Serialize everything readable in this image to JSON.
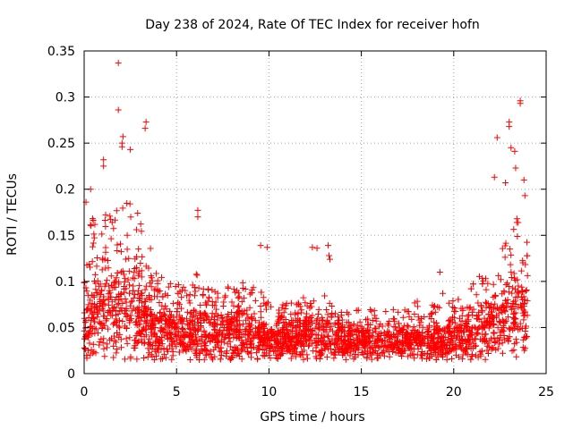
{
  "chart_data": {
    "type": "scatter",
    "title": "Day 238 of 2024, Rate Of TEC Index for receiver hofn",
    "xlabel": "GPS time / hours",
    "ylabel": "ROTI / TECUs",
    "xlim": [
      0,
      25
    ],
    "ylim": [
      0,
      0.35
    ],
    "x_ticks": [
      "0",
      "5",
      "10",
      "15",
      "20",
      "25"
    ],
    "y_ticks": [
      "0",
      "0.05",
      "0.1",
      "0.15",
      "0.2",
      "0.25",
      "0.3",
      "0.35"
    ],
    "x_tick_values": [
      0,
      5,
      10,
      15,
      20,
      25
    ],
    "y_tick_values": [
      0,
      0.05,
      0.1,
      0.15,
      0.2,
      0.25,
      0.3,
      0.35
    ],
    "grid": true,
    "marker": "+",
    "color": "#ff0000",
    "series": [
      {
        "envelope": {
          "x_hours": [
            0,
            0.5,
            1,
            1.5,
            2,
            2.5,
            3,
            3.5,
            4,
            4.5,
            5,
            5.5,
            6,
            6.5,
            7,
            7.5,
            8,
            8.5,
            9,
            9.5,
            10,
            10.5,
            11,
            11.5,
            12,
            12.5,
            13,
            13.5,
            14,
            14.5,
            15,
            15.5,
            16,
            16.5,
            17,
            17.5,
            18,
            18.5,
            19,
            19.5,
            20,
            20.5,
            21,
            21.5,
            22,
            22.5,
            23,
            23.5,
            24
          ],
          "low": [
            0.01,
            0.015,
            0.015,
            0.015,
            0.015,
            0.015,
            0.015,
            0.015,
            0.015,
            0.015,
            0.015,
            0.015,
            0.015,
            0.015,
            0.015,
            0.015,
            0.015,
            0.015,
            0.015,
            0.015,
            0.015,
            0.015,
            0.015,
            0.015,
            0.015,
            0.015,
            0.015,
            0.015,
            0.015,
            0.015,
            0.015,
            0.015,
            0.015,
            0.015,
            0.015,
            0.015,
            0.015,
            0.015,
            0.015,
            0.015,
            0.015,
            0.015,
            0.015,
            0.015,
            0.015,
            0.015,
            0.015,
            0.015,
            0.015
          ],
          "typical_high": [
            0.16,
            0.17,
            0.17,
            0.18,
            0.18,
            0.19,
            0.17,
            0.14,
            0.12,
            0.11,
            0.1,
            0.1,
            0.11,
            0.1,
            0.09,
            0.09,
            0.1,
            0.1,
            0.1,
            0.09,
            0.09,
            0.08,
            0.08,
            0.08,
            0.09,
            0.08,
            0.09,
            0.07,
            0.07,
            0.07,
            0.07,
            0.07,
            0.07,
            0.07,
            0.07,
            0.07,
            0.08,
            0.07,
            0.08,
            0.09,
            0.09,
            0.1,
            0.11,
            0.12,
            0.13,
            0.15,
            0.16,
            0.17,
            0.15
          ],
          "density_center": [
            0.05,
            0.06,
            0.07,
            0.07,
            0.07,
            0.07,
            0.06,
            0.055,
            0.05,
            0.05,
            0.045,
            0.045,
            0.045,
            0.045,
            0.045,
            0.04,
            0.045,
            0.045,
            0.045,
            0.04,
            0.04,
            0.04,
            0.04,
            0.04,
            0.04,
            0.04,
            0.04,
            0.04,
            0.035,
            0.035,
            0.035,
            0.035,
            0.035,
            0.035,
            0.035,
            0.035,
            0.035,
            0.035,
            0.035,
            0.035,
            0.04,
            0.04,
            0.045,
            0.05,
            0.05,
            0.06,
            0.065,
            0.07,
            0.06
          ]
        },
        "outliers": [
          {
            "x": 1.85,
            "y": 0.337
          },
          {
            "x": 1.85,
            "y": 0.286
          },
          {
            "x": 3.35,
            "y": 0.273
          },
          {
            "x": 3.3,
            "y": 0.266
          },
          {
            "x": 2.1,
            "y": 0.257
          },
          {
            "x": 2.05,
            "y": 0.25
          },
          {
            "x": 2.05,
            "y": 0.246
          },
          {
            "x": 2.5,
            "y": 0.243
          },
          {
            "x": 1.05,
            "y": 0.232
          },
          {
            "x": 1.05,
            "y": 0.225
          },
          {
            "x": 0.35,
            "y": 0.2
          },
          {
            "x": 0.1,
            "y": 0.186
          },
          {
            "x": 6.15,
            "y": 0.177
          },
          {
            "x": 6.15,
            "y": 0.17
          },
          {
            "x": 13.2,
            "y": 0.139
          },
          {
            "x": 9.55,
            "y": 0.139
          },
          {
            "x": 9.9,
            "y": 0.137
          },
          {
            "x": 12.35,
            "y": 0.137
          },
          {
            "x": 12.6,
            "y": 0.136
          },
          {
            "x": 13.25,
            "y": 0.128
          },
          {
            "x": 13.3,
            "y": 0.124
          },
          {
            "x": 19.25,
            "y": 0.11
          },
          {
            "x": 22.35,
            "y": 0.256
          },
          {
            "x": 22.2,
            "y": 0.213
          },
          {
            "x": 22.8,
            "y": 0.207
          },
          {
            "x": 23.0,
            "y": 0.273
          },
          {
            "x": 23.0,
            "y": 0.268
          },
          {
            "x": 23.1,
            "y": 0.245
          },
          {
            "x": 23.3,
            "y": 0.241
          },
          {
            "x": 23.35,
            "y": 0.223
          },
          {
            "x": 23.6,
            "y": 0.296
          },
          {
            "x": 23.6,
            "y": 0.293
          },
          {
            "x": 23.8,
            "y": 0.21
          },
          {
            "x": 23.85,
            "y": 0.193
          }
        ]
      }
    ]
  }
}
